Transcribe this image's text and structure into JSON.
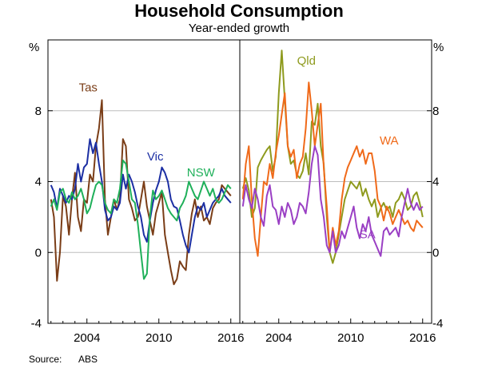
{
  "title": "Household Consumption",
  "subtitle": "Year-ended growth",
  "source": {
    "label": "Source:",
    "value": "ABS"
  },
  "colors": {
    "Tas": "#7a3d17",
    "Vic": "#1c2fa3",
    "NSW": "#1fb05a",
    "Qld": "#8e9a1d",
    "WA": "#f06a1a",
    "SA": "#9a3fc4"
  },
  "chart_data": [
    {
      "type": "line",
      "panel": "left",
      "unit_left": "%",
      "unit_right": "%",
      "ylim": [
        -4,
        12
      ],
      "yticks": [
        -4,
        0,
        4,
        8
      ],
      "xlim": [
        2000.75,
        2016.75
      ],
      "xticks": [
        2004,
        2010,
        2016
      ],
      "grid": true,
      "series": [
        {
          "name": "Tas",
          "label_at": [
            2004.1,
            9.1
          ],
          "x": [
            2001,
            2001.25,
            2001.5,
            2001.75,
            2002,
            2002.25,
            2002.5,
            2002.75,
            2003,
            2003.25,
            2003.5,
            2003.75,
            2004,
            2004.25,
            2004.5,
            2004.75,
            2005,
            2005.25,
            2005.5,
            2005.75,
            2006,
            2006.25,
            2006.5,
            2006.75,
            2007,
            2007.25,
            2007.5,
            2007.75,
            2008,
            2008.25,
            2008.5,
            2008.75,
            2009,
            2009.25,
            2009.5,
            2009.75,
            2010,
            2010.25,
            2010.5,
            2010.75,
            2011,
            2011.25,
            2011.5,
            2011.75,
            2012,
            2012.25,
            2012.5,
            2012.75,
            2013,
            2013.25,
            2013.5,
            2013.75,
            2014,
            2014.25,
            2014.5,
            2014.75,
            2015,
            2015.25,
            2015.5,
            2015.75,
            2016
          ],
          "values": [
            3.0,
            2.0,
            -1.6,
            0.0,
            3.2,
            2.6,
            1.0,
            3.0,
            4.5,
            2.0,
            1.2,
            3.0,
            2.8,
            4.4,
            4.0,
            6.0,
            7.0,
            8.6,
            3.0,
            1.0,
            2.0,
            3.0,
            2.4,
            3.0,
            6.4,
            6.0,
            3.0,
            2.5,
            1.8,
            2.0,
            3.0,
            4.0,
            2.6,
            1.8,
            1.0,
            2.2,
            2.8,
            3.4,
            1.0,
            0.0,
            -1.0,
            -1.8,
            -1.5,
            -0.5,
            -0.8,
            -1.0,
            1.0,
            2.2,
            3.0,
            2.0,
            2.6,
            1.8,
            2.0,
            1.6,
            2.5,
            2.8,
            3.0,
            3.8,
            3.6,
            3.4,
            3.2
          ]
        },
        {
          "name": "Vic",
          "label_at": [
            2009.7,
            5.2
          ],
          "x": [
            2001,
            2001.25,
            2001.5,
            2001.75,
            2002,
            2002.25,
            2002.5,
            2002.75,
            2003,
            2003.25,
            2003.5,
            2003.75,
            2004,
            2004.25,
            2004.5,
            2004.75,
            2005,
            2005.25,
            2005.5,
            2005.75,
            2006,
            2006.25,
            2006.5,
            2006.75,
            2007,
            2007.25,
            2007.5,
            2007.75,
            2008,
            2008.25,
            2008.5,
            2008.75,
            2009,
            2009.25,
            2009.5,
            2009.75,
            2010,
            2010.25,
            2010.5,
            2010.75,
            2011,
            2011.25,
            2011.5,
            2011.75,
            2012,
            2012.25,
            2012.5,
            2012.75,
            2013,
            2013.25,
            2013.5,
            2013.75,
            2014,
            2014.25,
            2014.5,
            2014.75,
            2015,
            2015.25,
            2015.5,
            2015.75,
            2016
          ],
          "values": [
            3.8,
            3.4,
            2.5,
            3.6,
            3.2,
            2.8,
            3.2,
            3.0,
            3.6,
            5.0,
            4.0,
            4.8,
            5.0,
            6.4,
            5.6,
            6.2,
            5.0,
            4.0,
            2.4,
            1.8,
            2.0,
            2.6,
            2.4,
            2.8,
            4.4,
            3.6,
            4.4,
            4.0,
            3.4,
            2.6,
            2.0,
            1.0,
            0.6,
            1.8,
            2.8,
            3.5,
            4.0,
            4.8,
            4.5,
            4.0,
            3.0,
            2.6,
            2.5,
            1.8,
            1.0,
            0.4,
            0.0,
            1.0,
            2.0,
            2.6,
            2.4,
            2.8,
            2.0,
            2.4,
            2.8,
            3.0,
            3.2,
            3.6,
            3.2,
            3.0,
            2.8
          ]
        },
        {
          "name": "NSW",
          "label_at": [
            2013.5,
            4.3
          ],
          "x": [
            2001,
            2001.25,
            2001.5,
            2001.75,
            2002,
            2002.25,
            2002.5,
            2002.75,
            2003,
            2003.25,
            2003.5,
            2003.75,
            2004,
            2004.25,
            2004.5,
            2004.75,
            2005,
            2005.25,
            2005.5,
            2005.75,
            2006,
            2006.25,
            2006.5,
            2006.75,
            2007,
            2007.25,
            2007.5,
            2007.75,
            2008,
            2008.25,
            2008.5,
            2008.75,
            2009,
            2009.25,
            2009.5,
            2009.75,
            2010,
            2010.25,
            2010.5,
            2010.75,
            2011,
            2011.25,
            2011.5,
            2011.75,
            2012,
            2012.25,
            2012.5,
            2012.75,
            2013,
            2013.25,
            2013.5,
            2013.75,
            2014,
            2014.25,
            2014.5,
            2014.75,
            2015,
            2015.25,
            2015.5,
            2015.75,
            2016
          ],
          "values": [
            2.6,
            3.0,
            2.4,
            3.4,
            3.6,
            3.0,
            2.8,
            3.4,
            3.0,
            3.2,
            3.6,
            3.0,
            2.2,
            2.5,
            3.2,
            3.8,
            4.0,
            3.8,
            2.8,
            2.4,
            2.2,
            3.0,
            2.8,
            3.6,
            5.2,
            5.0,
            4.0,
            3.0,
            2.8,
            1.6,
            0.0,
            -1.5,
            -1.2,
            2.0,
            3.5,
            3.0,
            3.2,
            3.5,
            3.0,
            2.5,
            2.2,
            2.0,
            1.8,
            2.5,
            2.8,
            3.2,
            4.0,
            3.6,
            3.2,
            3.0,
            3.5,
            4.0,
            3.6,
            3.2,
            3.6,
            3.0,
            2.8,
            3.0,
            3.4,
            3.8,
            3.6
          ]
        }
      ]
    },
    {
      "type": "line",
      "panel": "right",
      "unit_left": "%",
      "unit_right": "%",
      "ylim": [
        -4,
        12
      ],
      "yticks": [
        -4,
        0,
        4,
        8
      ],
      "xlim": [
        2000.75,
        2016.75
      ],
      "xticks": [
        2004,
        2010,
        2016
      ],
      "grid": true,
      "series": [
        {
          "name": "Qld",
          "label_at": [
            2006.3,
            10.6
          ],
          "x": [
            2001,
            2001.25,
            2001.5,
            2001.75,
            2002,
            2002.25,
            2002.5,
            2002.75,
            2003,
            2003.25,
            2003.5,
            2003.75,
            2004,
            2004.25,
            2004.5,
            2004.75,
            2005,
            2005.25,
            2005.5,
            2005.75,
            2006,
            2006.25,
            2006.5,
            2006.75,
            2007,
            2007.25,
            2007.5,
            2007.75,
            2008,
            2008.25,
            2008.5,
            2008.75,
            2009,
            2009.25,
            2009.5,
            2009.75,
            2010,
            2010.25,
            2010.5,
            2010.75,
            2011,
            2011.25,
            2011.5,
            2011.75,
            2012,
            2012.25,
            2012.5,
            2012.75,
            2013,
            2013.25,
            2013.5,
            2013.75,
            2014,
            2014.25,
            2014.5,
            2014.75,
            2015,
            2015.25,
            2015.5,
            2015.75,
            2016
          ],
          "values": [
            3.6,
            4.2,
            3.5,
            2.0,
            2.5,
            4.8,
            5.2,
            5.5,
            5.8,
            6.0,
            4.6,
            5.4,
            9.0,
            11.4,
            8.6,
            6.0,
            5.0,
            5.2,
            4.4,
            4.2,
            4.6,
            5.6,
            4.4,
            7.4,
            7.2,
            8.4,
            6.0,
            5.0,
            2.0,
            0.0,
            -0.6,
            0.0,
            1.0,
            2.0,
            3.0,
            3.5,
            4.0,
            3.8,
            3.6,
            4.0,
            3.2,
            3.6,
            3.0,
            2.6,
            3.0,
            2.0,
            2.5,
            2.8,
            2.4,
            2.6,
            2.0,
            2.8,
            3.0,
            3.4,
            3.0,
            2.4,
            2.6,
            3.2,
            3.4,
            2.8,
            2.0
          ]
        },
        {
          "name": "WA",
          "label_at": [
            2013.2,
            6.1
          ],
          "x": [
            2001,
            2001.25,
            2001.5,
            2001.75,
            2002,
            2002.25,
            2002.5,
            2002.75,
            2003,
            2003.25,
            2003.5,
            2003.75,
            2004,
            2004.25,
            2004.5,
            2004.75,
            2005,
            2005.25,
            2005.5,
            2005.75,
            2006,
            2006.25,
            2006.5,
            2006.75,
            2007,
            2007.25,
            2007.5,
            2007.75,
            2008,
            2008.25,
            2008.5,
            2008.75,
            2009,
            2009.25,
            2009.5,
            2009.75,
            2010,
            2010.25,
            2010.5,
            2010.75,
            2011,
            2011.25,
            2011.5,
            2011.75,
            2012,
            2012.25,
            2012.5,
            2012.75,
            2013,
            2013.25,
            2013.5,
            2013.75,
            2014,
            2014.25,
            2014.5,
            2014.75,
            2015,
            2015.25,
            2015.5,
            2015.75,
            2016
          ],
          "values": [
            3.0,
            5.0,
            6.0,
            3.0,
            0.8,
            -0.2,
            2.0,
            4.0,
            3.8,
            5.0,
            4.2,
            5.6,
            6.6,
            7.8,
            9.0,
            6.0,
            5.4,
            5.8,
            4.2,
            5.0,
            5.4,
            7.0,
            9.6,
            8.0,
            6.0,
            7.2,
            8.4,
            4.8,
            2.6,
            0.0,
            1.4,
            0.4,
            1.2,
            3.0,
            4.2,
            4.8,
            5.2,
            5.6,
            6.0,
            5.4,
            5.8,
            5.0,
            5.6,
            5.6,
            4.6,
            3.0,
            2.6,
            1.8,
            2.6,
            2.2,
            1.6,
            2.0,
            2.4,
            2.0,
            1.6,
            1.8,
            1.4,
            1.2,
            1.8,
            1.6,
            1.4
          ]
        },
        {
          "name": "SA",
          "label_at": [
            2011.4,
            0.8
          ],
          "x": [
            2001,
            2001.25,
            2001.5,
            2001.75,
            2002,
            2002.25,
            2002.5,
            2002.75,
            2003,
            2003.25,
            2003.5,
            2003.75,
            2004,
            2004.25,
            2004.5,
            2004.75,
            2005,
            2005.25,
            2005.5,
            2005.75,
            2006,
            2006.25,
            2006.5,
            2006.75,
            2007,
            2007.25,
            2007.5,
            2007.75,
            2008,
            2008.25,
            2008.5,
            2008.75,
            2009,
            2009.25,
            2009.5,
            2009.75,
            2010,
            2010.25,
            2010.5,
            2010.75,
            2011,
            2011.25,
            2011.5,
            2011.75,
            2012,
            2012.25,
            2012.5,
            2012.75,
            2013,
            2013.25,
            2013.5,
            2013.75,
            2014,
            2014.25,
            2014.5,
            2014.75,
            2015,
            2015.25,
            2015.5,
            2015.75,
            2016
          ],
          "values": [
            2.6,
            3.8,
            3.0,
            2.5,
            3.6,
            3.0,
            2.0,
            1.5,
            3.2,
            3.8,
            2.6,
            2.4,
            1.6,
            2.6,
            2.0,
            2.8,
            2.4,
            1.6,
            2.0,
            2.8,
            2.6,
            2.2,
            3.4,
            5.0,
            6.0,
            5.5,
            3.0,
            2.0,
            0.4,
            0.0,
            1.2,
            0.0,
            0.4,
            1.2,
            0.8,
            1.4,
            2.0,
            2.6,
            1.4,
            0.8,
            1.6,
            1.2,
            2.0,
            1.0,
            0.6,
            0.2,
            -0.2,
            1.2,
            1.4,
            1.0,
            1.2,
            1.4,
            0.9,
            2.0,
            2.8,
            3.6,
            2.8,
            2.4,
            2.8,
            2.4,
            2.6
          ]
        }
      ]
    }
  ]
}
